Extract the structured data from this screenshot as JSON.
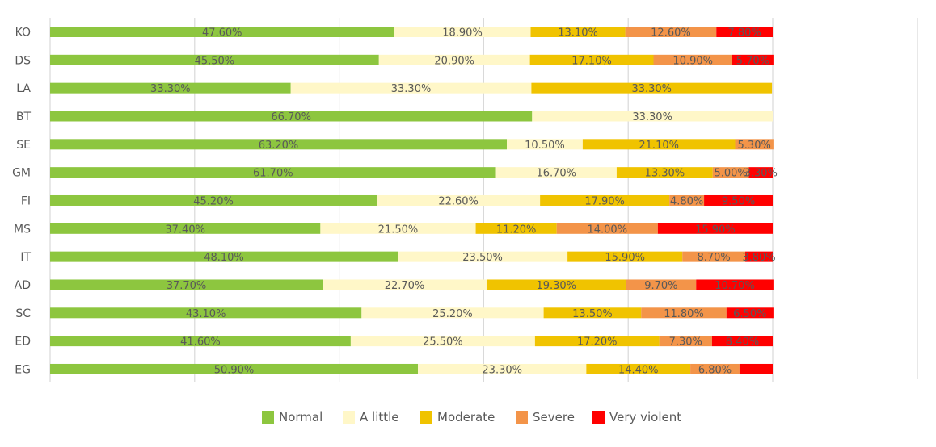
{
  "chart_data": {
    "type": "bar",
    "orientation": "horizontal",
    "stacked": true,
    "title": "",
    "xlabel": "",
    "ylabel": "",
    "xlim": [
      0,
      100
    ],
    "grid": true,
    "legend_position": "bottom",
    "categories": [
      "KO",
      "DS",
      "LA",
      "BT",
      "SE",
      "GM",
      "FI",
      "MS",
      "IT",
      "AD",
      "SC",
      "ED",
      "EG"
    ],
    "series": [
      {
        "name": "Normal",
        "color": "#8dc63f",
        "values": [
          47.6,
          45.5,
          33.3,
          66.7,
          63.2,
          61.7,
          45.2,
          37.4,
          48.1,
          37.7,
          43.1,
          41.6,
          50.9
        ],
        "labels": [
          "47.60%",
          "45.50%",
          "33.30%",
          "66.70%",
          "63.20%",
          "61.70%",
          "45.20%",
          "37.40%",
          "48.10%",
          "37.70%",
          "43.10%",
          "41.60%",
          "50.90%"
        ]
      },
      {
        "name": "A little",
        "color": "#fff7c8",
        "values": [
          18.9,
          20.9,
          33.3,
          33.3,
          10.5,
          16.7,
          22.6,
          21.5,
          23.5,
          22.7,
          25.2,
          25.5,
          23.3
        ],
        "labels": [
          "18.90%",
          "20.90%",
          "33.30%",
          "33.30%",
          "10.50%",
          "16.70%",
          "22.60%",
          "21.50%",
          "23.50%",
          "22.70%",
          "25.20%",
          "25.50%",
          "23.30%"
        ]
      },
      {
        "name": "Moderate",
        "color": "#f0c300",
        "values": [
          13.1,
          17.1,
          33.3,
          0,
          21.1,
          13.3,
          17.9,
          11.2,
          15.9,
          19.3,
          13.5,
          17.2,
          14.4
        ],
        "labels": [
          "13.10%",
          "17.10%",
          "33.30%",
          "",
          "21.10%",
          "13.30%",
          "17.90%",
          "11.20%",
          "15.90%",
          "19.30%",
          "13.50%",
          "17.20%",
          "14.40%"
        ]
      },
      {
        "name": "Severe",
        "color": "#f39449",
        "values": [
          12.6,
          10.9,
          0,
          0,
          5.3,
          5.0,
          4.8,
          14.0,
          8.7,
          9.7,
          11.8,
          7.3,
          6.8
        ],
        "labels": [
          "12.60%",
          "10.90%",
          "",
          "",
          "5.30%",
          "5.00%",
          "4.80%",
          "14.00%",
          "8.70%",
          "9.70%",
          "11.80%",
          "7.30%",
          "6.80%"
        ]
      },
      {
        "name": "Very violent",
        "color": "#ff0000",
        "values": [
          7.8,
          5.7,
          0,
          0,
          0,
          3.3,
          9.5,
          15.9,
          3.8,
          10.7,
          6.5,
          8.4,
          4.6
        ],
        "labels": [
          "7.80%",
          "5.70%",
          "",
          "",
          "",
          "3.30%",
          "9.50%",
          "15.90%",
          "3.80%",
          "10.70%",
          "6.50%",
          "8.40%",
          ""
        ]
      }
    ]
  }
}
